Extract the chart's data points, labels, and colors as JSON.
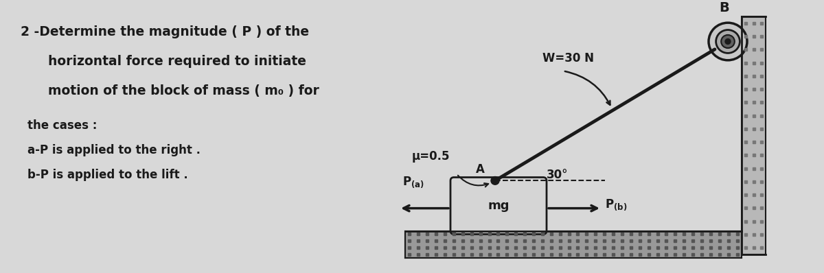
{
  "bg_color": "#d8d8d8",
  "text_color": "#1a1a1a",
  "line_color": "#1a1a1a",
  "title_line1": "2 -Determine the magnitude ( P ) of the",
  "title_line2": "   horizontal force required to initiate",
  "title_line3": "   motion of the block of mass ( m",
  "title_line3b": " ) for",
  "title_line4": "the cases :",
  "title_line5": "a-P is applied to the right .",
  "title_line6": "b-P is applied to the lift .",
  "mu_label": "μ=0.5",
  "W_label": "W=30 N",
  "angle_label": "30°",
  "B_label": "B",
  "A_label": "A",
  "mg_label": "mg",
  "wall_color": "#b8b8b8",
  "floor_color": "#888888",
  "block_color": "#d5d5d5",
  "pulley_outer_color": "#c8c8c8",
  "pulley_inner_color": "#606060"
}
